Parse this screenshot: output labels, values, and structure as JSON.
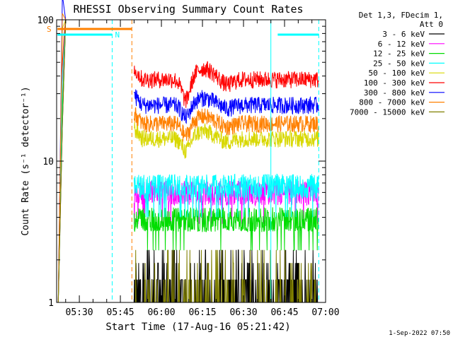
{
  "chart_data": {
    "type": "line",
    "title": "RHESSI Observing Summary Count Rates",
    "xlabel": "Start Time (17-Aug-16 05:21:42)",
    "ylabel": "Count Rate (s⁻¹ detector⁻¹)",
    "x_range_minutes": [
      321.7,
      420.0
    ],
    "x_ticks": [
      {
        "minute": 330,
        "label": "05:30"
      },
      {
        "minute": 345,
        "label": "05:45"
      },
      {
        "minute": 360,
        "label": "06:00"
      },
      {
        "minute": 375,
        "label": "06:15"
      },
      {
        "minute": 390,
        "label": "06:30"
      },
      {
        "minute": 405,
        "label": "06:45"
      },
      {
        "minute": 420,
        "label": "07:00"
      }
    ],
    "yscale": "log",
    "ylim": [
      1,
      100
    ],
    "y_ticks": [
      {
        "value": 1,
        "label": "1"
      },
      {
        "value": 10,
        "label": "10"
      },
      {
        "value": 100,
        "label": "100"
      }
    ],
    "legend_header": [
      "Det 1,3, FDecim 1,",
      "Att 0"
    ],
    "legend_placement": "right",
    "series": [
      {
        "name": "3 - 6 keV",
        "color": "#000000",
        "level": 1.4
      },
      {
        "name": "6 - 12 keV",
        "color": "#ff00ff",
        "level": 6.0
      },
      {
        "name": "12 - 25 keV",
        "color": "#00dd00",
        "level": 3.9
      },
      {
        "name": "25 - 50 keV",
        "color": "#00ffff",
        "level": 6.7
      },
      {
        "name": "50 - 100 keV",
        "color": "#d8d800",
        "level": 14.5
      },
      {
        "name": "100 - 300 keV",
        "color": "#ff0000",
        "level": 38.0
      },
      {
        "name": "300 - 800 keV",
        "color": "#0000ff",
        "level": 25.0
      },
      {
        "name": "800 - 7000 keV",
        "color": "#ff8000",
        "level": 18.5
      },
      {
        "name": "7000 - 15000 keV",
        "color": "#808000",
        "level": 1.2
      }
    ],
    "saa_flag": {
      "label": "S",
      "color": "#ff8000",
      "from_minute": 322.0,
      "to_minute": 349.2
    },
    "night_flags": [
      {
        "label": "N",
        "color": "#00ffff",
        "from_minute": 322.0,
        "to_minute": 342.0
      },
      {
        "label": "",
        "color": "#00ffff",
        "from_minute": 402.5,
        "to_minute": 417.5
      }
    ],
    "markers": [
      {
        "minute": 342.0,
        "color": "#00ffff",
        "style": "dashed"
      },
      {
        "minute": 349.2,
        "color": "#ff8000",
        "style": "dashed"
      },
      {
        "minute": 400.0,
        "color": "#00ffff",
        "style": "solid"
      },
      {
        "minute": 417.5,
        "color": "#00ffff",
        "style": "dashed"
      }
    ],
    "data_start_minute": 350.0,
    "data_end_minute": 417.5,
    "timestamp": "1-Sep-2022 07:50"
  }
}
